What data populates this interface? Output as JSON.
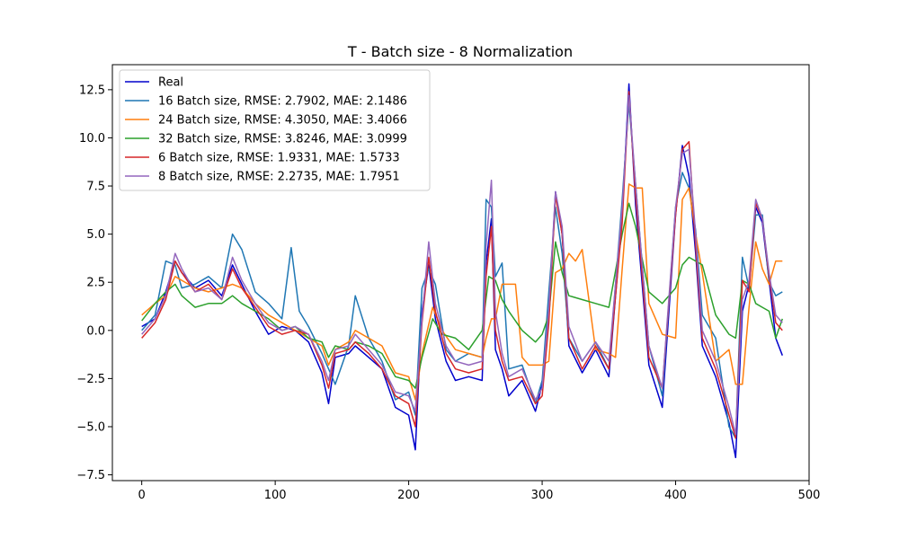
{
  "chart_data": {
    "type": "line",
    "title": "T - Batch size - 8 Normalization",
    "xlabel": "",
    "ylabel": "",
    "xlim": [
      -22,
      500
    ],
    "ylim": [
      -7.8,
      13.8
    ],
    "xticks": [
      0,
      100,
      200,
      300,
      400,
      500
    ],
    "xtick_labels": [
      "0",
      "100",
      "200",
      "300",
      "400",
      "500"
    ],
    "yticks": [
      -7.5,
      -5.0,
      -2.5,
      0.0,
      2.5,
      5.0,
      7.5,
      10.0,
      12.5
    ],
    "ytick_labels": [
      "−7.5",
      "−5.0",
      "−2.5",
      "0.0",
      "2.5",
      "5.0",
      "7.5",
      "10.0",
      "12.5"
    ],
    "grid": false,
    "legend_position": "top-left",
    "series": [
      {
        "name": "Real",
        "color": "#0000cc",
        "x": [
          0,
          10,
          18,
          25,
          30,
          40,
          50,
          60,
          68,
          75,
          85,
          95,
          105,
          115,
          125,
          135,
          140,
          145,
          155,
          160,
          170,
          180,
          190,
          200,
          205,
          210,
          215,
          220,
          228,
          235,
          245,
          255,
          258,
          262,
          265,
          270,
          275,
          285,
          295,
          300,
          305,
          310,
          315,
          320,
          330,
          340,
          350,
          360,
          365,
          370,
          380,
          390,
          400,
          405,
          410,
          415,
          420,
          430,
          440,
          445,
          450,
          455,
          460,
          465,
          470,
          475,
          480
        ],
        "y": [
          0.2,
          0.6,
          2.0,
          3.6,
          3.0,
          2.2,
          2.6,
          1.8,
          3.4,
          2.4,
          1.0,
          -0.2,
          0.2,
          0.0,
          -0.6,
          -2.2,
          -3.8,
          -1.4,
          -1.2,
          -0.8,
          -1.4,
          -2.0,
          -4.0,
          -4.4,
          -6.2,
          1.0,
          3.4,
          0.6,
          -1.6,
          -2.6,
          -2.4,
          -2.6,
          3.5,
          5.8,
          -1.0,
          -2.0,
          -3.4,
          -2.6,
          -4.2,
          -2.8,
          0.8,
          7.2,
          5.0,
          -0.8,
          -2.2,
          -1.0,
          -2.4,
          6.0,
          12.8,
          6.5,
          -1.8,
          -4.0,
          6.0,
          9.6,
          8.0,
          4.0,
          -0.8,
          -2.4,
          -4.8,
          -6.6,
          1.0,
          2.4,
          6.4,
          5.6,
          2.6,
          -0.4,
          -1.3
        ]
      },
      {
        "name": "16 Batch size, RMSE: 2.7902, MAE: 2.1486",
        "color": "#1f77b4",
        "x": [
          0,
          10,
          18,
          25,
          30,
          40,
          50,
          60,
          68,
          75,
          85,
          95,
          105,
          112,
          118,
          125,
          135,
          145,
          155,
          160,
          170,
          180,
          190,
          200,
          205,
          210,
          215,
          220,
          228,
          235,
          245,
          255,
          258,
          262,
          265,
          270,
          275,
          285,
          295,
          300,
          305,
          310,
          315,
          320,
          330,
          340,
          350,
          360,
          365,
          370,
          380,
          390,
          400,
          405,
          410,
          415,
          420,
          430,
          440,
          445,
          450,
          455,
          460,
          465,
          470,
          475,
          480
        ],
        "y": [
          0.0,
          0.8,
          3.6,
          3.4,
          2.2,
          2.4,
          2.8,
          2.2,
          5.0,
          4.2,
          2.0,
          1.4,
          0.6,
          4.3,
          1.0,
          0.2,
          -1.2,
          -2.8,
          -0.8,
          1.8,
          -0.4,
          -1.6,
          -3.6,
          -3.2,
          -4.4,
          2.2,
          3.2,
          2.4,
          -1.0,
          -1.6,
          -1.2,
          -1.4,
          6.8,
          6.4,
          2.8,
          3.5,
          -2.0,
          -1.8,
          -3.8,
          -2.6,
          2.0,
          6.4,
          4.0,
          -0.4,
          -1.6,
          -0.6,
          -2.0,
          6.8,
          11.8,
          7.6,
          -0.8,
          -3.4,
          6.4,
          8.2,
          7.4,
          5.2,
          0.8,
          -0.4,
          -5.0,
          -5.6,
          3.8,
          2.2,
          6.0,
          6.0,
          2.5,
          1.8,
          2.0
        ]
      },
      {
        "name": "24 Batch size, RMSE: 4.3050, MAE: 3.4066",
        "color": "#ff7f0e",
        "x": [
          0,
          10,
          18,
          25,
          30,
          40,
          50,
          60,
          68,
          75,
          85,
          95,
          105,
          115,
          125,
          135,
          140,
          145,
          155,
          160,
          170,
          180,
          190,
          200,
          205,
          210,
          218,
          225,
          235,
          245,
          255,
          258,
          262,
          265,
          270,
          280,
          285,
          290,
          300,
          305,
          310,
          315,
          320,
          325,
          330,
          340,
          350,
          355,
          360,
          365,
          370,
          375,
          380,
          390,
          400,
          405,
          410,
          415,
          420,
          430,
          440,
          445,
          450,
          455,
          460,
          465,
          470,
          475,
          480
        ],
        "y": [
          0.8,
          1.4,
          1.8,
          2.8,
          2.6,
          2.2,
          2.0,
          2.2,
          2.4,
          2.2,
          1.4,
          0.8,
          0.4,
          0.0,
          -0.4,
          -0.8,
          -1.8,
          -1.0,
          -0.6,
          0.0,
          -0.4,
          -0.8,
          -2.2,
          -2.4,
          -3.6,
          -1.2,
          1.2,
          0.0,
          -1.0,
          -1.2,
          -1.4,
          -0.4,
          0.6,
          0.6,
          2.4,
          2.4,
          -1.4,
          -1.8,
          -1.8,
          -1.6,
          3.0,
          3.2,
          4.0,
          3.6,
          4.2,
          -1.0,
          -1.2,
          -1.4,
          3.2,
          7.6,
          7.4,
          7.4,
          1.4,
          -0.2,
          -0.4,
          6.8,
          7.4,
          5.0,
          3.0,
          -1.6,
          -1.0,
          -2.8,
          -2.8,
          1.2,
          4.6,
          3.2,
          2.4,
          3.6,
          3.6
        ]
      },
      {
        "name": "32 Batch size, RMSE: 3.8246, MAE: 3.0999",
        "color": "#2ca02c",
        "x": [
          0,
          10,
          18,
          25,
          30,
          40,
          50,
          60,
          68,
          75,
          85,
          95,
          105,
          115,
          125,
          135,
          140,
          145,
          155,
          160,
          170,
          180,
          190,
          200,
          205,
          210,
          218,
          225,
          235,
          245,
          255,
          260,
          265,
          270,
          275,
          285,
          295,
          300,
          305,
          310,
          315,
          320,
          330,
          340,
          350,
          360,
          365,
          370,
          380,
          390,
          400,
          405,
          410,
          415,
          420,
          430,
          440,
          445,
          450,
          455,
          460,
          465,
          470,
          475,
          480
        ],
        "y": [
          0.5,
          1.4,
          2.0,
          2.4,
          1.8,
          1.2,
          1.4,
          1.4,
          1.8,
          1.4,
          1.0,
          0.6,
          0.0,
          0.2,
          -0.4,
          -0.6,
          -1.4,
          -0.8,
          -1.0,
          -0.6,
          -0.8,
          -1.2,
          -2.4,
          -2.6,
          -3.0,
          -1.4,
          0.6,
          -0.2,
          -0.4,
          -1.0,
          0.0,
          2.8,
          2.6,
          1.6,
          1.0,
          0.0,
          -0.6,
          -0.2,
          0.8,
          4.6,
          3.0,
          1.8,
          1.6,
          1.4,
          1.2,
          5.0,
          6.6,
          5.4,
          2.0,
          1.4,
          2.2,
          3.4,
          3.8,
          3.6,
          3.4,
          0.8,
          -0.2,
          -0.4,
          2.6,
          2.4,
          1.4,
          1.2,
          1.0,
          -0.4,
          0.6
        ]
      },
      {
        "name": "6 Batch size, RMSE: 1.9331, MAE: 1.5733",
        "color": "#d62728",
        "x": [
          0,
          10,
          18,
          25,
          30,
          40,
          50,
          60,
          68,
          75,
          85,
          95,
          105,
          115,
          125,
          135,
          140,
          145,
          155,
          160,
          170,
          180,
          190,
          200,
          205,
          210,
          215,
          220,
          228,
          235,
          245,
          255,
          258,
          262,
          265,
          270,
          275,
          285,
          295,
          300,
          305,
          310,
          315,
          320,
          330,
          340,
          350,
          360,
          365,
          370,
          380,
          390,
          400,
          405,
          410,
          415,
          420,
          430,
          440,
          445,
          450,
          455,
          460,
          465,
          470,
          475,
          480
        ],
        "y": [
          -0.4,
          0.4,
          1.6,
          3.6,
          3.0,
          2.0,
          2.4,
          1.6,
          3.2,
          2.2,
          1.2,
          0.2,
          -0.2,
          0.0,
          -0.2,
          -1.8,
          -3.0,
          -1.2,
          -1.0,
          -0.6,
          -1.2,
          -2.0,
          -3.4,
          -3.8,
          -5.0,
          0.4,
          3.8,
          1.0,
          -1.2,
          -2.0,
          -2.2,
          -2.0,
          2.8,
          5.4,
          0.0,
          -1.6,
          -2.6,
          -2.4,
          -3.8,
          -3.4,
          0.4,
          7.0,
          5.0,
          -0.4,
          -2.0,
          -0.8,
          -2.0,
          5.6,
          12.4,
          7.0,
          -1.4,
          -3.0,
          6.0,
          9.4,
          9.8,
          4.4,
          -0.4,
          -2.0,
          -4.4,
          -5.6,
          2.6,
          2.0,
          6.6,
          5.8,
          2.8,
          0.4,
          0.0
        ]
      },
      {
        "name": "8 Batch size, RMSE: 2.2735, MAE: 1.7951",
        "color": "#9467bd",
        "x": [
          0,
          10,
          18,
          25,
          30,
          40,
          50,
          60,
          68,
          75,
          85,
          95,
          105,
          115,
          125,
          135,
          140,
          145,
          155,
          160,
          170,
          180,
          190,
          200,
          205,
          210,
          215,
          220,
          228,
          235,
          245,
          255,
          258,
          262,
          265,
          270,
          275,
          285,
          295,
          300,
          305,
          310,
          315,
          320,
          330,
          340,
          350,
          360,
          365,
          370,
          380,
          390,
          400,
          405,
          410,
          415,
          420,
          430,
          440,
          445,
          450,
          455,
          460,
          465,
          470,
          475,
          480
        ],
        "y": [
          -0.2,
          0.6,
          1.8,
          4.0,
          3.2,
          2.0,
          2.2,
          1.6,
          3.8,
          2.6,
          1.4,
          0.4,
          0.0,
          0.2,
          -0.2,
          -1.6,
          -2.6,
          -1.0,
          -0.8,
          -0.2,
          -1.0,
          -1.8,
          -3.2,
          -3.4,
          -4.2,
          0.6,
          4.6,
          1.4,
          -0.8,
          -1.6,
          -1.8,
          -1.6,
          4.4,
          7.8,
          1.0,
          -1.2,
          -2.4,
          -2.0,
          -3.6,
          -3.0,
          1.2,
          7.2,
          5.4,
          0.2,
          -1.6,
          -0.6,
          -1.6,
          6.4,
          12.2,
          7.6,
          -0.8,
          -3.0,
          6.4,
          9.2,
          9.4,
          5.0,
          0.0,
          -1.6,
          -4.0,
          -5.4,
          1.6,
          2.6,
          6.8,
          5.8,
          3.0,
          0.8,
          0.4
        ]
      }
    ]
  }
}
